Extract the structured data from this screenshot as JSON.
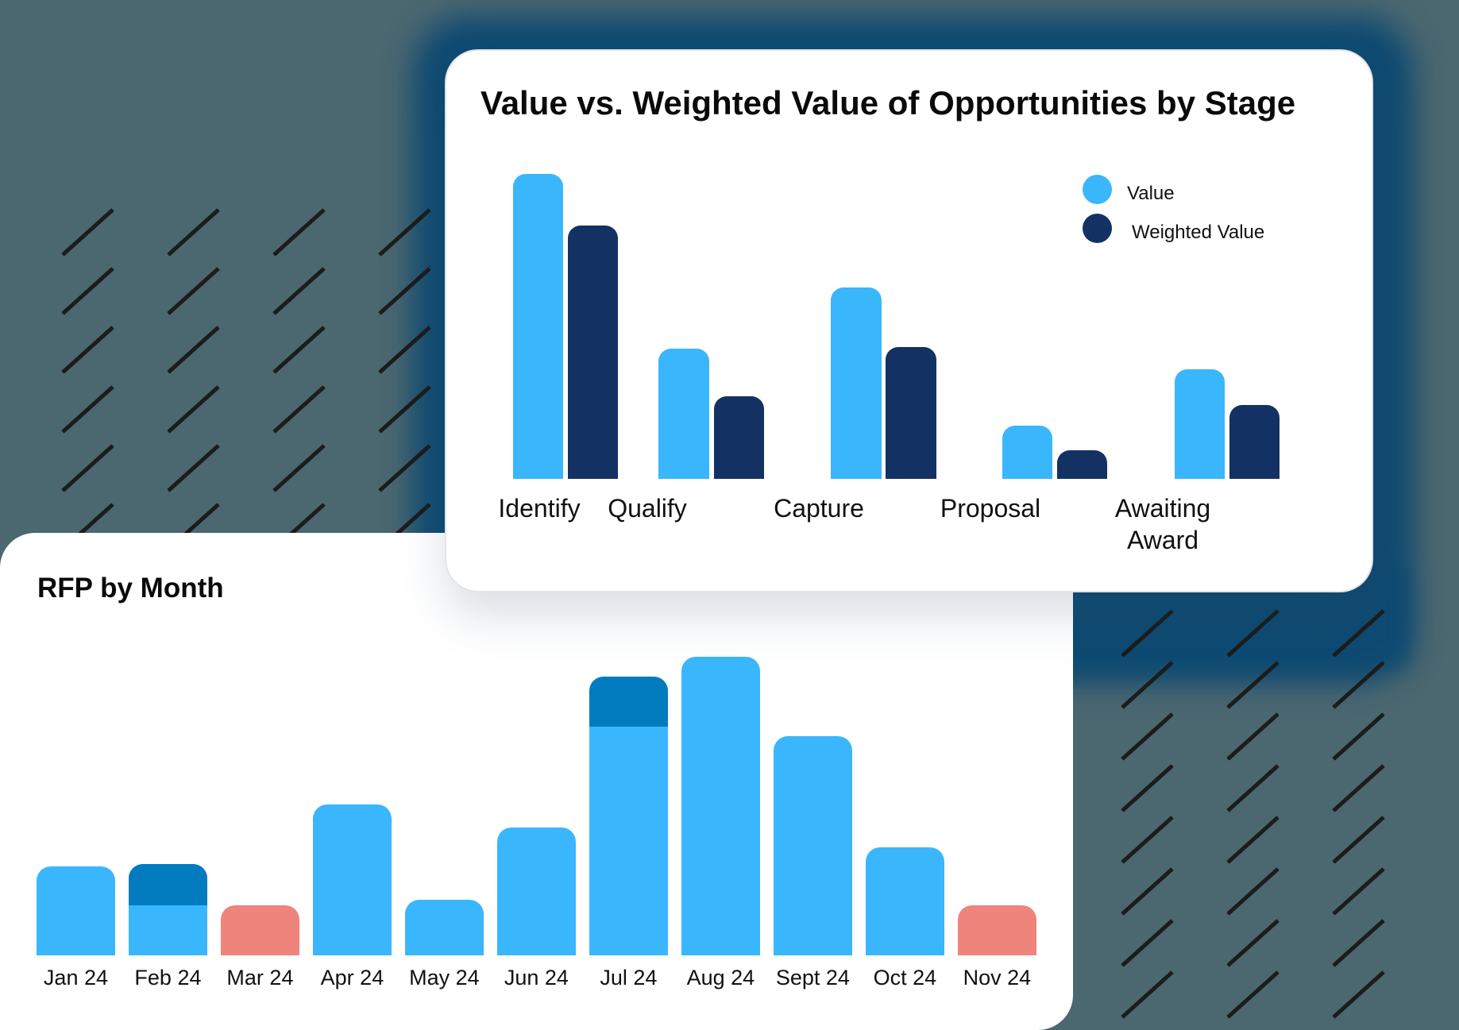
{
  "colors": {
    "background": "#4b6770",
    "value": "#3ab6fd",
    "weighted_value": "#133263",
    "rfp_bar": "#3ab6fd",
    "rfp_highlight": "#037bbf",
    "rfp_low": "#ee847c"
  },
  "stage_card": {
    "title": "Value vs. Weighted Value of Opportunities by Stage",
    "legend": [
      {
        "label": "Value",
        "color": "#3ab6fd"
      },
      {
        "label": "Weighted Value",
        "color": "#133263"
      }
    ],
    "labels": [
      "Identify",
      "Qualify",
      "Capture",
      "Proposal",
      "Awaiting",
      "Award"
    ]
  },
  "rfp_card": {
    "title": "RFP by Month",
    "labels": [
      "Jan 24",
      "Feb 24",
      "Mar 24",
      "Apr 24",
      "May 24",
      "Jun 24",
      "Jul 24",
      "Aug 24",
      "Sept 24",
      "Oct 24",
      "Nov 24"
    ]
  },
  "chart_data": [
    {
      "type": "bar",
      "title": "Value vs. Weighted Value of Opportunities by Stage",
      "categories": [
        "Identify",
        "Qualify",
        "Capture",
        "Proposal",
        "Awaiting Award"
      ],
      "series": [
        {
          "name": "Value",
          "values": [
            328,
            140,
            206,
            57,
            118
          ]
        },
        {
          "name": "Weighted Value",
          "values": [
            272,
            89,
            142,
            31,
            79
          ]
        }
      ],
      "xlabel": "",
      "ylabel": "",
      "grid": false,
      "legend_position": "top-right",
      "note": "No axis shown; values are relative bar heights"
    },
    {
      "type": "bar",
      "title": "RFP by Month",
      "categories": [
        "Jan 24",
        "Feb 24",
        "Mar 24",
        "Apr 24",
        "May 24",
        "Jun 24",
        "Jul 24",
        "Aug 24",
        "Sept 24",
        "Oct 24",
        "Nov 24"
      ],
      "values": [
        96,
        98,
        54,
        162,
        60,
        138,
        300,
        321,
        236,
        116,
        54
      ],
      "highlighted_segments": {
        "Feb 24": 44,
        "Jul 24": 54
      },
      "bar_colors": [
        "#3ab6fd",
        "#3ab6fd",
        "#ee847c",
        "#3ab6fd",
        "#3ab6fd",
        "#3ab6fd",
        "#3ab6fd",
        "#3ab6fd",
        "#3ab6fd",
        "#3ab6fd",
        "#ee847c"
      ],
      "xlabel": "",
      "ylabel": "",
      "grid": false,
      "note": "No axis shown; values are relative bar heights"
    }
  ]
}
